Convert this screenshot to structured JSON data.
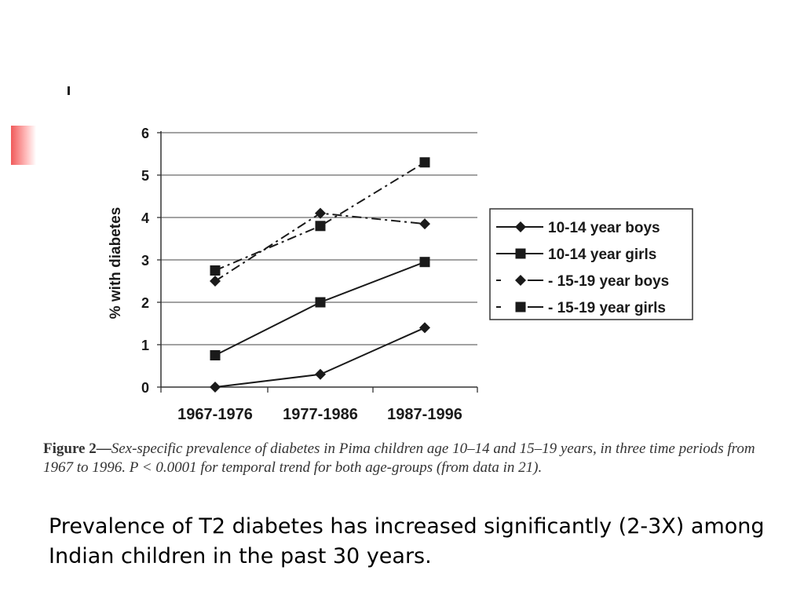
{
  "chart_data": {
    "type": "line",
    "ylabel": "% with diabetes",
    "ylim": [
      0,
      6
    ],
    "yticks": [
      0,
      1,
      2,
      3,
      4,
      5,
      6
    ],
    "categories": [
      "1967-1976",
      "1977-1986",
      "1987-1996"
    ],
    "grid": true,
    "legend_position": "right",
    "series": [
      {
        "name": "10-14 year boys",
        "marker": "diamond",
        "dash": "solid",
        "values": [
          0.0,
          0.3,
          1.4
        ]
      },
      {
        "name": "10-14 year girls",
        "marker": "square",
        "dash": "solid",
        "values": [
          0.75,
          2.0,
          2.95
        ]
      },
      {
        "name": "- 15-19 year boys",
        "marker": "diamond",
        "dash": "dashdot",
        "values": [
          2.5,
          4.1,
          3.85
        ]
      },
      {
        "name": "- 15-19 year girls",
        "marker": "square",
        "dash": "dashdot",
        "values": [
          2.75,
          3.8,
          5.3
        ]
      }
    ]
  },
  "caption": {
    "lead": "Figure 2—",
    "text": "Sex-specific prevalence of diabetes in Pima children age 10–14 and 15–19 years, in three time periods from 1967 to 1996. P < 0.0001 for temporal trend for both age-groups (from data in 21)."
  },
  "slide_text": "Prevalence of T2 diabetes has increased significantly (2-3X) among Indian children in the past 30 years."
}
